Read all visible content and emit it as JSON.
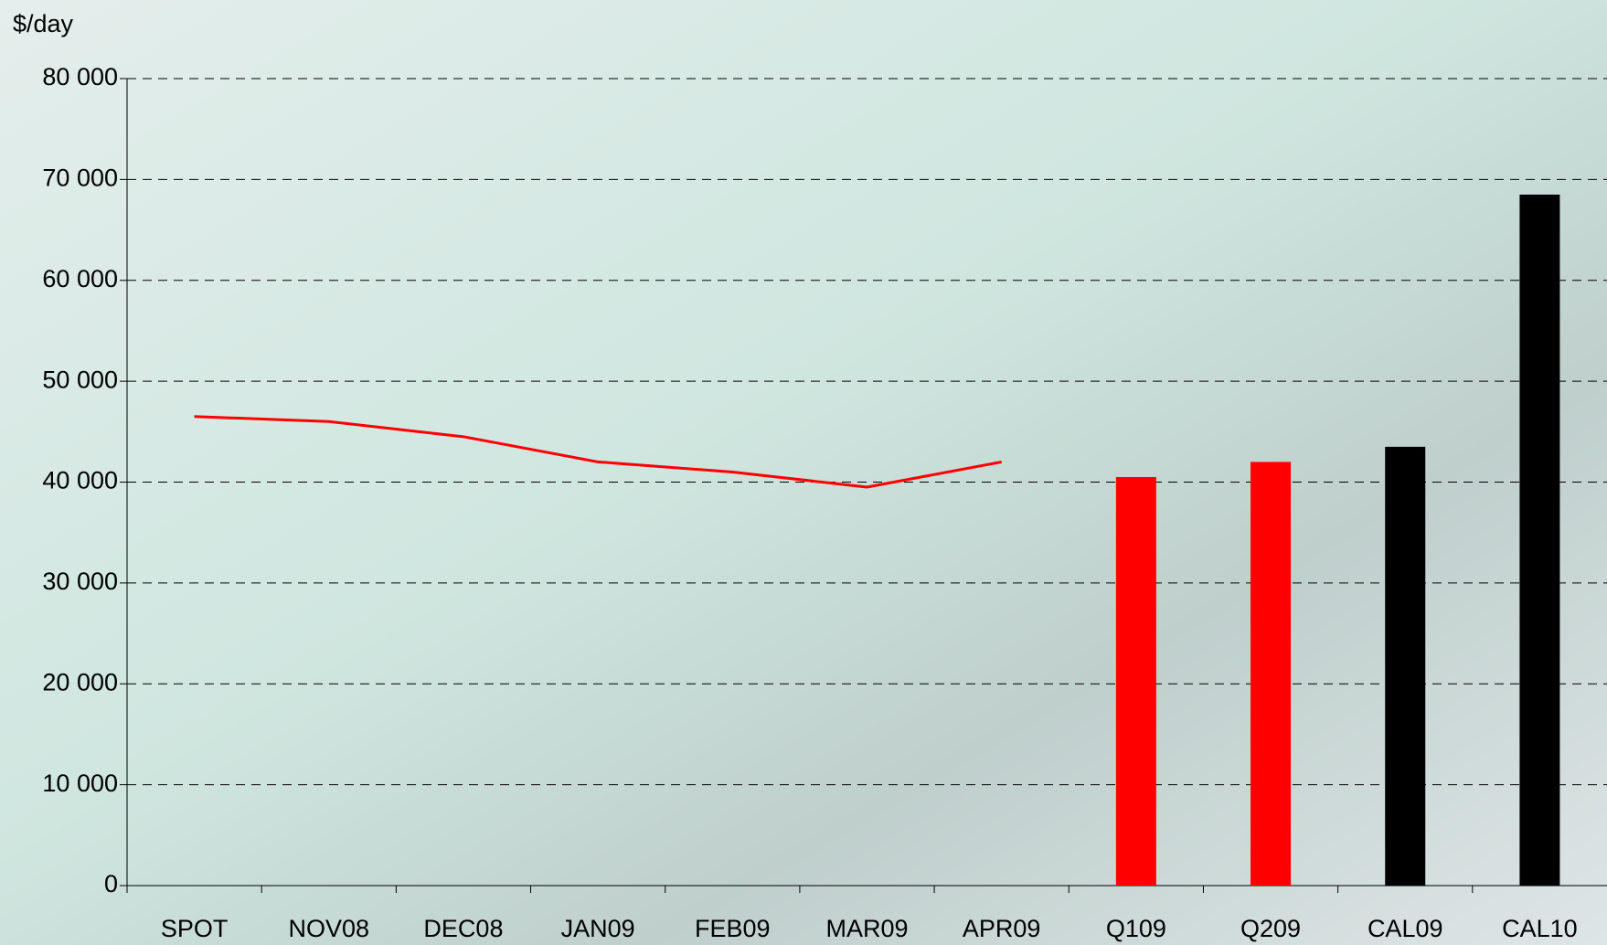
{
  "chart_data": {
    "type": "bar-line",
    "y_label": "$/day",
    "categories": [
      "SPOT",
      "NOV08",
      "DEC08",
      "JAN09",
      "FEB09",
      "MAR09",
      "APR09",
      "Q109",
      "Q209",
      "CAL09",
      "CAL10"
    ],
    "series": [
      {
        "type": "line",
        "color": "#ff0000",
        "values": [
          46500,
          46000,
          44500,
          42000,
          41000,
          39500,
          42000,
          null,
          null,
          null,
          null
        ]
      },
      {
        "type": "bar",
        "colors": [
          null,
          null,
          null,
          null,
          null,
          null,
          null,
          "#ff0000",
          "#ff0000",
          "#000000",
          "#000000"
        ],
        "values": [
          null,
          null,
          null,
          null,
          null,
          null,
          null,
          40500,
          42000,
          43500,
          68500
        ]
      }
    ],
    "ylim": [
      0,
      80000
    ],
    "yticks": [
      {
        "value": 0,
        "label": "0"
      },
      {
        "value": 10000,
        "label": "10 000"
      },
      {
        "value": 20000,
        "label": "20 000"
      },
      {
        "value": 30000,
        "label": "30 000"
      },
      {
        "value": 40000,
        "label": "40 000"
      },
      {
        "value": 50000,
        "label": "50 000"
      },
      {
        "value": 60000,
        "label": "60 000"
      },
      {
        "value": 70000,
        "label": "70 000"
      },
      {
        "value": 80000,
        "label": "80 000"
      }
    ],
    "grid": true
  }
}
